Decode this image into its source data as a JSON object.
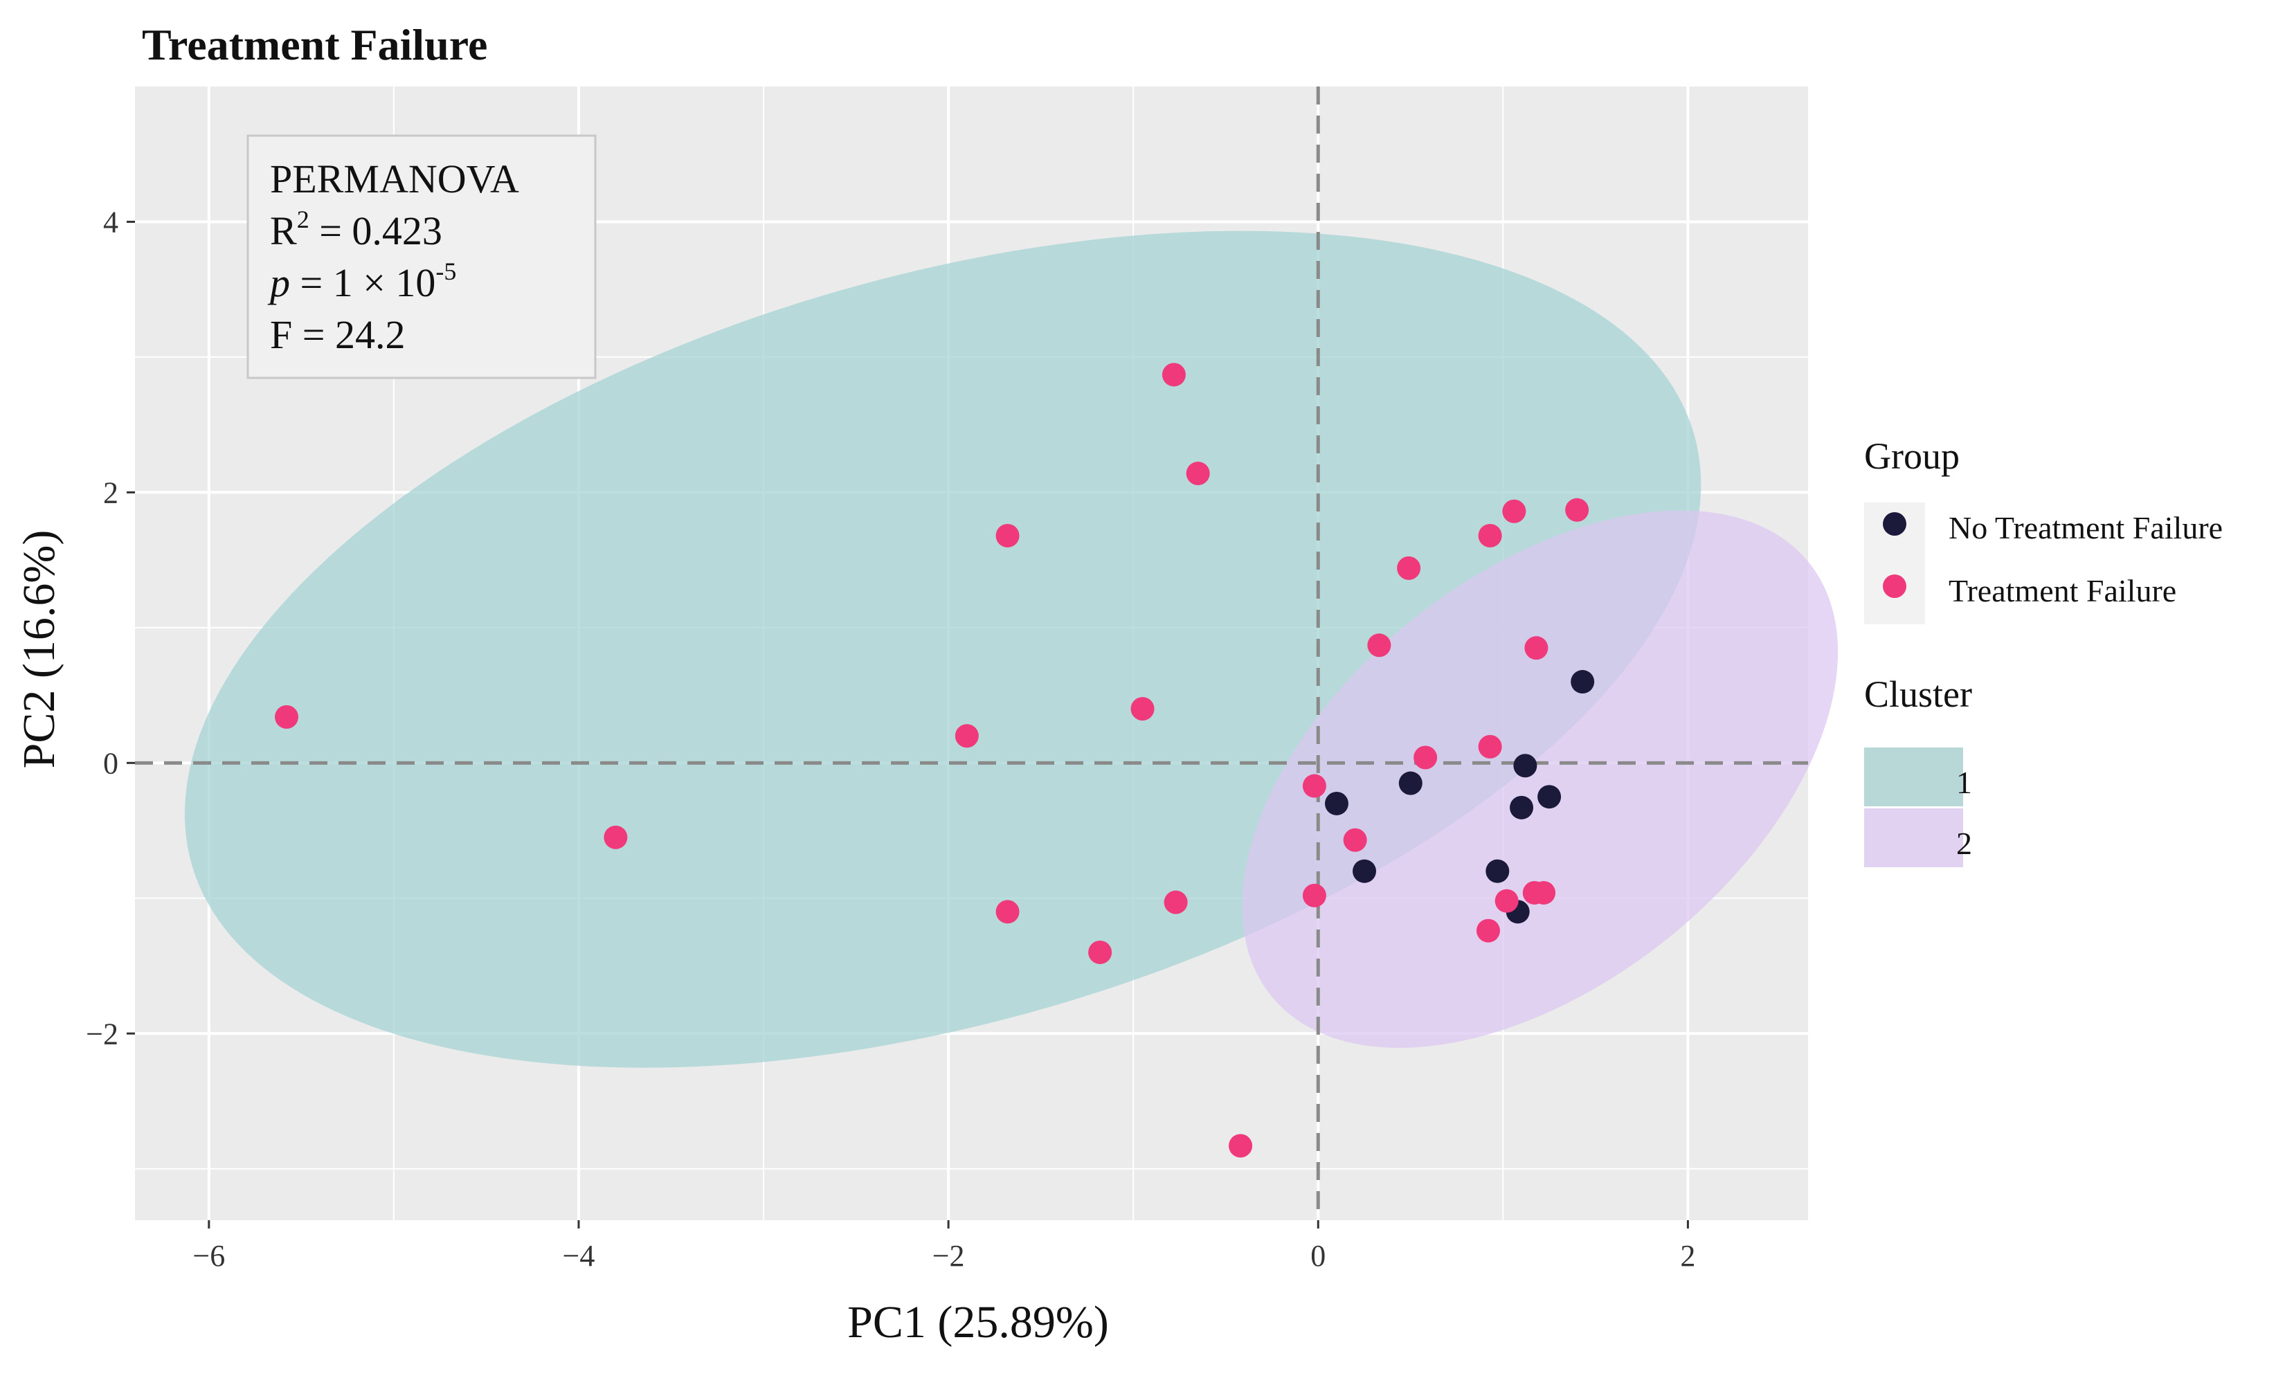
{
  "chart_data": {
    "type": "scatter",
    "title": "Treatment Failure",
    "xlabel": "PC1 (25.89%)",
    "ylabel": "PC2 (16.6%)",
    "xlim": [
      -6.4,
      2.65
    ],
    "ylim": [
      -3.38,
      5.0
    ],
    "x_ticks": [
      -6,
      -4,
      -2,
      0,
      2
    ],
    "y_ticks": [
      -2,
      0,
      2,
      4
    ],
    "x_tick_labels": [
      "−6",
      "−4",
      "−2",
      "0",
      "2"
    ],
    "y_tick_labels": [
      "−2",
      "0",
      "2",
      "4"
    ],
    "grid": true,
    "reference_lines": {
      "x": 0,
      "y": 0
    },
    "annotation": {
      "line1": "PERMANOVA",
      "r2_prefix": "R",
      "r2_sup": "2",
      "r2_value": " = 0.423",
      "p_symbol": "p",
      "p_value": " = 1 × 10",
      "p_exp": "-5",
      "f_value": "F = 24.2"
    },
    "legend_group": {
      "title": "Group",
      "items": [
        {
          "label": "No Treatment Failure",
          "color": "#1c1a3a"
        },
        {
          "label": "Treatment Failure",
          "color": "#f0397a"
        }
      ]
    },
    "legend_cluster": {
      "title": "Cluster",
      "items": [
        {
          "label": "1",
          "color": "#b8d8d8"
        },
        {
          "label": "2",
          "color": "#e2d2f2"
        }
      ]
    },
    "ellipses": [
      {
        "cluster": "1",
        "center": [
          -2.03,
          0.84
        ],
        "semi_axes": [
          4.4,
          2.65
        ],
        "angle_deg": 27,
        "color": "#a6d3d3",
        "opacity": 0.75
      },
      {
        "cluster": "2",
        "center": [
          1.2,
          -0.12
        ],
        "semi_axes": [
          2.22,
          1.27
        ],
        "angle_deg": 57,
        "color": "#dcc6f1",
        "opacity": 0.72
      }
    ],
    "series": [
      {
        "name": "No Treatment Failure",
        "color": "#1c1a3a",
        "points": [
          [
            0.1,
            -0.3
          ],
          [
            0.5,
            -0.15
          ],
          [
            0.25,
            -0.8
          ],
          [
            1.12,
            -0.02
          ],
          [
            1.1,
            -0.33
          ],
          [
            1.25,
            -0.25
          ],
          [
            0.97,
            -0.8
          ],
          [
            1.08,
            -1.1
          ],
          [
            1.43,
            0.6
          ]
        ]
      },
      {
        "name": "Treatment Failure",
        "color": "#f0397a",
        "points": [
          [
            -5.58,
            0.34
          ],
          [
            -3.8,
            -0.55
          ],
          [
            -1.9,
            0.2
          ],
          [
            -1.68,
            1.68
          ],
          [
            -1.68,
            -1.1
          ],
          [
            -1.18,
            -1.4
          ],
          [
            -0.95,
            0.4
          ],
          [
            -0.78,
            2.87
          ],
          [
            -0.65,
            2.14
          ],
          [
            -0.77,
            -1.03
          ],
          [
            -0.42,
            -2.83
          ],
          [
            -0.02,
            -0.17
          ],
          [
            -0.02,
            -0.98
          ],
          [
            0.2,
            -0.57
          ],
          [
            0.33,
            0.87
          ],
          [
            0.49,
            1.44
          ],
          [
            0.58,
            0.04
          ],
          [
            0.93,
            1.68
          ],
          [
            0.93,
            0.12
          ],
          [
            1.06,
            1.86
          ],
          [
            1.18,
            0.85
          ],
          [
            1.4,
            1.87
          ],
          [
            0.92,
            -1.24
          ],
          [
            1.02,
            -1.02
          ],
          [
            1.17,
            -0.96
          ],
          [
            1.22,
            -0.96
          ]
        ]
      }
    ]
  }
}
